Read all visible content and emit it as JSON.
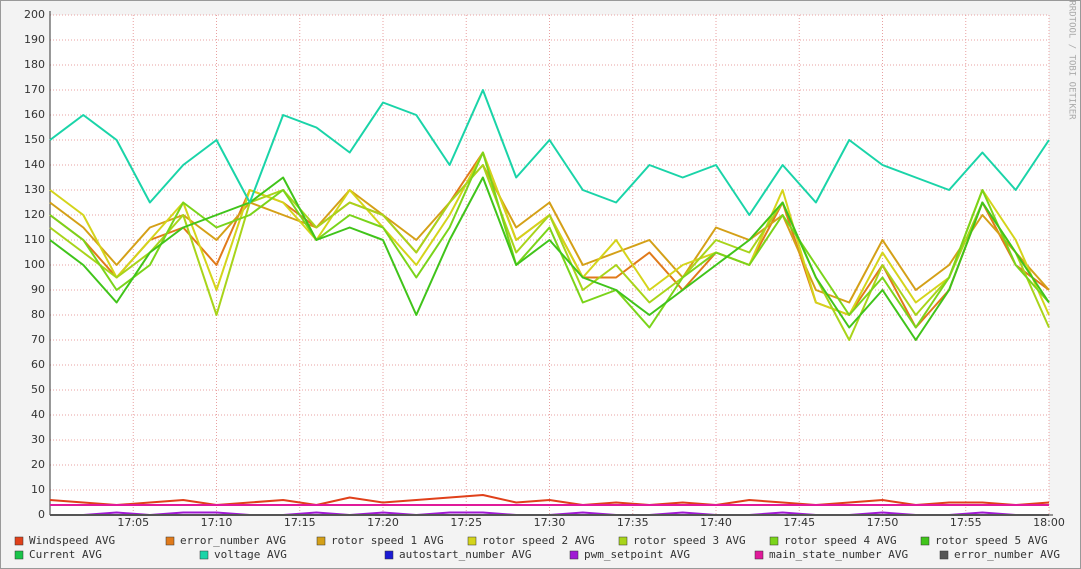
{
  "chart_data": {
    "type": "line",
    "side_text": "RRDTOOL / TOBI OETIKER",
    "x": [
      0,
      2,
      4,
      6,
      8,
      10,
      12,
      14,
      16,
      18,
      20,
      22,
      24,
      26,
      28,
      30,
      32,
      34,
      36,
      38,
      40,
      42,
      44,
      46,
      48,
      50,
      52,
      54,
      56,
      58,
      60
    ],
    "xlim": [
      0,
      60
    ],
    "xticks": [
      {
        "value": 5,
        "label": "17:05"
      },
      {
        "value": 10,
        "label": "17:10"
      },
      {
        "value": 15,
        "label": "17:15"
      },
      {
        "value": 20,
        "label": "17:20"
      },
      {
        "value": 25,
        "label": "17:25"
      },
      {
        "value": 30,
        "label": "17:30"
      },
      {
        "value": 35,
        "label": "17:35"
      },
      {
        "value": 40,
        "label": "17:40"
      },
      {
        "value": 45,
        "label": "17:45"
      },
      {
        "value": 50,
        "label": "17:50"
      },
      {
        "value": 55,
        "label": "17:55"
      },
      {
        "value": 60,
        "label": "18:00"
      }
    ],
    "ylim": [
      0,
      200
    ],
    "yticks": [
      0,
      10,
      20,
      30,
      40,
      50,
      60,
      70,
      80,
      90,
      100,
      110,
      120,
      130,
      140,
      150,
      160,
      170,
      180,
      190,
      200
    ],
    "grid": true,
    "series": [
      {
        "name": "Windspeed AVG",
        "color": "#e0401a",
        "values": [
          6,
          5,
          4,
          5,
          6,
          4,
          5,
          6,
          4,
          7,
          5,
          6,
          7,
          8,
          5,
          6,
          4,
          5,
          4,
          5,
          4,
          6,
          5,
          4,
          5,
          6,
          4,
          5,
          5,
          4,
          5
        ]
      },
      {
        "name": "error_number AVG",
        "color": "#e07a1a",
        "values": [
          120,
          110,
          95,
          110,
          115,
          100,
          130,
          125,
          115,
          125,
          120,
          105,
          125,
          145,
          110,
          120,
          95,
          95,
          105,
          90,
          105,
          100,
          125,
          85,
          80,
          100,
          75,
          90,
          125,
          100,
          90
        ]
      },
      {
        "name": "rotor speed 1 AVG",
        "color": "#d4a017",
        "values": [
          125,
          115,
          100,
          115,
          120,
          110,
          125,
          120,
          115,
          130,
          120,
          110,
          125,
          140,
          115,
          125,
          100,
          105,
          110,
          95,
          115,
          110,
          120,
          90,
          85,
          110,
          90,
          100,
          120,
          105,
          90
        ]
      },
      {
        "name": "rotor speed 2 AVG",
        "color": "#d4d41a",
        "values": [
          130,
          120,
          95,
          110,
          125,
          90,
          130,
          125,
          110,
          130,
          115,
          100,
          120,
          145,
          110,
          120,
          95,
          110,
          90,
          100,
          105,
          100,
          130,
          85,
          80,
          105,
          85,
          95,
          130,
          110,
          80
        ]
      },
      {
        "name": "rotor speed 3 AVG",
        "color": "#a8d41a",
        "values": [
          115,
          105,
          95,
          105,
          120,
          80,
          125,
          130,
          115,
          125,
          120,
          105,
          125,
          140,
          105,
          120,
          90,
          100,
          85,
          95,
          110,
          105,
          125,
          95,
          70,
          100,
          80,
          95,
          125,
          105,
          75
        ]
      },
      {
        "name": "rotor speed 4 AVG",
        "color": "#7ad41a",
        "values": [
          120,
          110,
          90,
          100,
          125,
          115,
          120,
          130,
          110,
          120,
          115,
          95,
          115,
          145,
          100,
          115,
          85,
          90,
          75,
          95,
          105,
          100,
          120,
          100,
          80,
          95,
          75,
          95,
          130,
          100,
          85
        ]
      },
      {
        "name": "rotor speed 5 AVG",
        "color": "#40c41a",
        "values": [
          110,
          100,
          85,
          105,
          115,
          120,
          125,
          135,
          110,
          115,
          110,
          80,
          110,
          135,
          100,
          110,
          95,
          90,
          80,
          90,
          100,
          110,
          125,
          95,
          75,
          90,
          70,
          90,
          125,
          105,
          85
        ]
      },
      {
        "name": "Current AVG",
        "color": "#1ac44a",
        "values": [
          0,
          0,
          0,
          0,
          0,
          0,
          0,
          0,
          0,
          0,
          0,
          0,
          0,
          0,
          0,
          0,
          0,
          0,
          0,
          0,
          0,
          0,
          0,
          0,
          0,
          0,
          0,
          0,
          0,
          0,
          0
        ]
      },
      {
        "name": "voltage AVG",
        "color": "#1ad4a8",
        "values": [
          150,
          160,
          150,
          125,
          140,
          150,
          125,
          160,
          155,
          145,
          165,
          160,
          140,
          170,
          135,
          150,
          130,
          125,
          140,
          135,
          140,
          120,
          140,
          125,
          150,
          140,
          135,
          130,
          145,
          130,
          150
        ]
      },
      {
        "name": "autostart_number AVG",
        "color": "#1a1ad4",
        "values": [
          0,
          0,
          0,
          0,
          0,
          0,
          0,
          0,
          0,
          0,
          0,
          0,
          0,
          0,
          0,
          0,
          0,
          0,
          0,
          0,
          0,
          0,
          0,
          0,
          0,
          0,
          0,
          0,
          0,
          0,
          0
        ]
      },
      {
        "name": "pwm_setpoint AVG",
        "color": "#a01ad4",
        "values": [
          0,
          0,
          1,
          0,
          1,
          1,
          0,
          0,
          1,
          0,
          1,
          0,
          1,
          1,
          0,
          0,
          1,
          0,
          0,
          1,
          0,
          0,
          1,
          0,
          0,
          1,
          0,
          0,
          1,
          0,
          0
        ]
      },
      {
        "name": "main_state_number AVG",
        "color": "#e01a9a",
        "values": [
          4,
          4,
          4,
          4,
          4,
          4,
          4,
          4,
          4,
          4,
          4,
          4,
          4,
          4,
          4,
          4,
          4,
          4,
          4,
          4,
          4,
          4,
          4,
          4,
          4,
          4,
          4,
          4,
          4,
          4,
          4
        ]
      },
      {
        "name": "error_number AVG",
        "color": "#555555",
        "values": [
          0,
          0,
          0,
          0,
          0,
          0,
          0,
          0,
          0,
          0,
          0,
          0,
          0,
          0,
          0,
          0,
          0,
          0,
          0,
          0,
          0,
          0,
          0,
          0,
          0,
          0,
          0,
          0,
          0,
          0,
          0
        ]
      }
    ]
  }
}
